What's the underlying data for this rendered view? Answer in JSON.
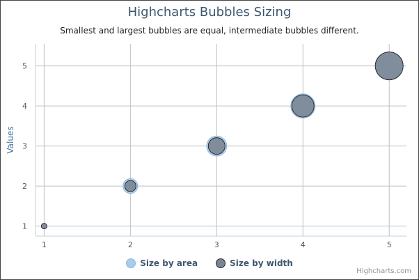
{
  "chart_data": {
    "type": "scatter",
    "title": "Highcharts Bubbles Sizing",
    "subtitle": "Smallest and largest bubbles are equal, intermediate bubbles different.",
    "xlabel": "",
    "ylabel": "Values",
    "xlim": [
      0.9,
      5.2
    ],
    "ylim": [
      0.75,
      5.55
    ],
    "x_ticks": [
      1,
      2,
      3,
      4,
      5
    ],
    "y_ticks": [
      1,
      2,
      3,
      4,
      5
    ],
    "grid": true,
    "legend_position": "bottom",
    "series": [
      {
        "name": "Size by area",
        "color": "#A8CBEE",
        "points": [
          {
            "x": 1,
            "y": 1,
            "z": 1
          },
          {
            "x": 2,
            "y": 2,
            "z": 2
          },
          {
            "x": 3,
            "y": 3,
            "z": 3
          },
          {
            "x": 4,
            "y": 4,
            "z": 4
          },
          {
            "x": 5,
            "y": 5,
            "z": 5
          }
        ]
      },
      {
        "name": "Size by width",
        "color": "#7A8594",
        "points": [
          {
            "x": 1,
            "y": 1,
            "z": 1
          },
          {
            "x": 2,
            "y": 2,
            "z": 2
          },
          {
            "x": 3,
            "y": 3,
            "z": 3
          },
          {
            "x": 4,
            "y": 4,
            "z": 4
          },
          {
            "x": 5,
            "y": 5,
            "z": 5
          }
        ]
      }
    ]
  },
  "credits": "Highcharts.com"
}
